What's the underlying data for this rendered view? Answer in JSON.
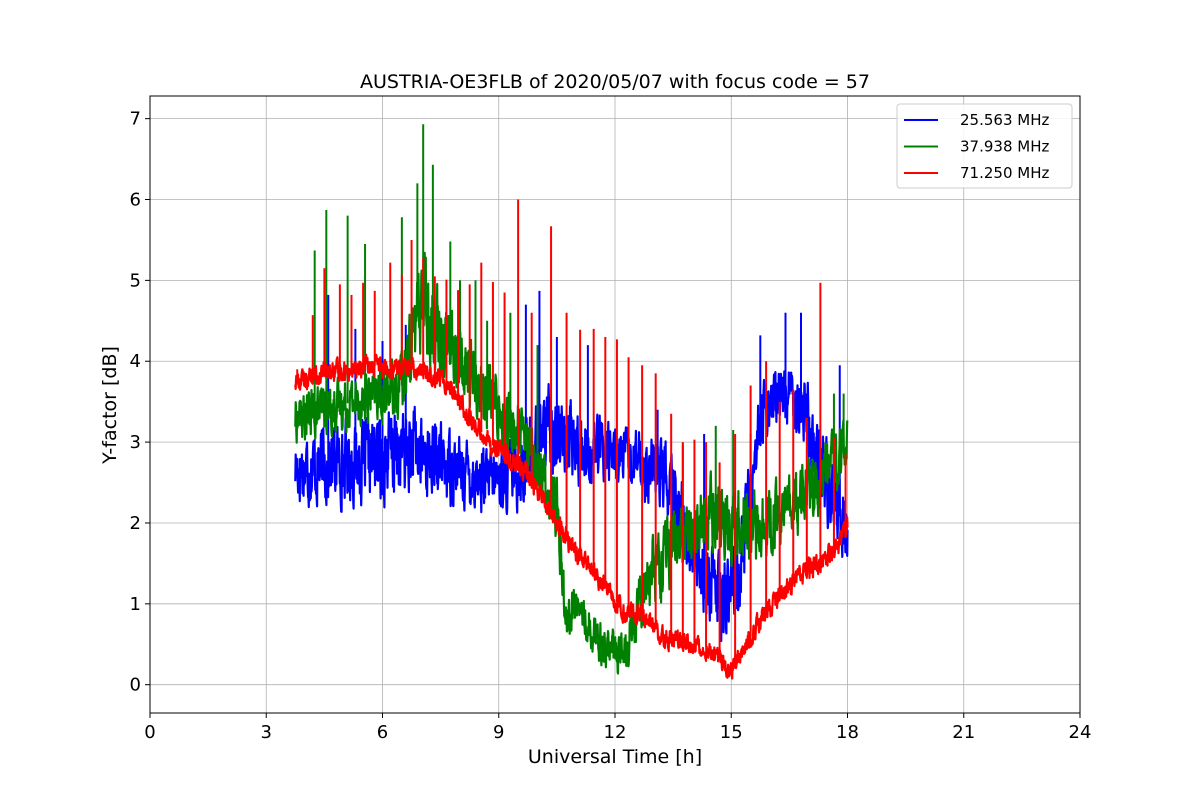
{
  "chart_data": {
    "type": "line",
    "title": "AUSTRIA-OE3FLB of 2020/05/07 with focus code = 57",
    "xlabel": "Universal Time [h]",
    "ylabel": "Y-factor [dB]",
    "xlim": [
      0,
      24
    ],
    "ylim": [
      -0.35,
      7.28
    ],
    "xticks": [
      0,
      3,
      6,
      9,
      12,
      15,
      18,
      21,
      24
    ],
    "yticks": [
      0,
      1,
      2,
      3,
      4,
      5,
      6,
      7
    ],
    "grid": true,
    "legend_position": "top-right",
    "series": [
      {
        "name": "25.563 MHz",
        "color": "#0000ff",
        "x": [
          3.75,
          4.25,
          4.75,
          5.25,
          5.75,
          6.25,
          6.75,
          7.25,
          7.75,
          8.25,
          8.75,
          9.25,
          9.75,
          10.25,
          10.75,
          11.25,
          11.75,
          12.25,
          12.75,
          13.25,
          13.75,
          14.25,
          14.75,
          15.25,
          15.75,
          16.25,
          16.75,
          17.25,
          17.75,
          18.0
        ],
        "base": [
          2.7,
          2.7,
          2.75,
          2.75,
          2.8,
          2.85,
          2.9,
          2.8,
          2.7,
          2.6,
          2.5,
          2.6,
          2.8,
          3.2,
          3.0,
          2.9,
          2.9,
          2.8,
          2.7,
          2.6,
          2.0,
          1.5,
          1.0,
          1.5,
          3.3,
          3.6,
          3.6,
          2.8,
          2.2,
          2.0
        ],
        "amp": [
          0.5,
          0.55,
          0.55,
          0.55,
          0.6,
          0.65,
          0.6,
          0.55,
          0.5,
          0.45,
          0.45,
          0.5,
          0.6,
          0.6,
          0.55,
          0.5,
          0.45,
          0.45,
          0.45,
          0.5,
          0.55,
          0.6,
          0.6,
          0.7,
          0.45,
          0.45,
          0.5,
          0.6,
          0.55,
          0.5
        ],
        "spikes": [
          [
            4.6,
            4.82
          ],
          [
            5.3,
            4.4
          ],
          [
            6.0,
            4.25
          ],
          [
            6.6,
            4.45
          ],
          [
            9.7,
            4.7
          ],
          [
            10.05,
            4.87
          ],
          [
            10.5,
            4.3
          ],
          [
            11.3,
            4.2
          ],
          [
            13.1,
            3.4
          ],
          [
            14.3,
            3.1
          ],
          [
            15.75,
            4.32
          ],
          [
            16.4,
            4.6
          ],
          [
            16.8,
            4.6
          ],
          [
            17.8,
            3.95
          ]
        ]
      },
      {
        "name": "37.938 MHz",
        "color": "#008000",
        "x": [
          3.75,
          4.5,
          5.25,
          6.0,
          6.5,
          7.0,
          7.5,
          8.0,
          8.5,
          9.0,
          9.5,
          10.0,
          10.5,
          10.75,
          11.0,
          11.5,
          12.0,
          12.25,
          12.75,
          13.25,
          13.75,
          14.25,
          14.75,
          15.25,
          15.75,
          16.25,
          16.75,
          17.25,
          17.75,
          18.0
        ],
        "base": [
          3.3,
          3.4,
          3.5,
          3.6,
          3.7,
          4.8,
          4.4,
          4.0,
          3.7,
          3.4,
          3.1,
          2.7,
          2.2,
          0.8,
          1.0,
          0.6,
          0.4,
          0.4,
          1.3,
          1.6,
          1.8,
          2.0,
          2.1,
          2.0,
          1.9,
          2.1,
          2.3,
          2.5,
          2.8,
          2.9
        ],
        "amp": [
          0.35,
          0.35,
          0.35,
          0.4,
          0.45,
          0.7,
          0.6,
          0.5,
          0.5,
          0.5,
          0.45,
          0.45,
          0.45,
          0.3,
          0.3,
          0.3,
          0.3,
          0.3,
          0.5,
          0.5,
          0.5,
          0.55,
          0.55,
          0.5,
          0.5,
          0.45,
          0.45,
          0.45,
          0.45,
          0.4
        ],
        "spikes": [
          [
            4.25,
            5.37
          ],
          [
            4.55,
            5.87
          ],
          [
            5.1,
            5.8
          ],
          [
            5.55,
            5.45
          ],
          [
            6.5,
            5.78
          ],
          [
            6.9,
            6.2
          ],
          [
            7.05,
            6.93
          ],
          [
            7.3,
            6.43
          ],
          [
            7.75,
            5.48
          ],
          [
            8.0,
            5.0
          ],
          [
            8.4,
            5.0
          ],
          [
            8.7,
            4.5
          ],
          [
            9.3,
            4.6
          ],
          [
            10.0,
            4.2
          ],
          [
            13.75,
            2.97
          ],
          [
            14.6,
            3.2
          ],
          [
            15.05,
            3.15
          ],
          [
            15.5,
            3.1
          ],
          [
            17.65,
            3.6
          ],
          [
            17.9,
            3.6
          ]
        ]
      },
      {
        "name": "71.250 MHz",
        "color": "#ff0000",
        "x": [
          3.75,
          4.5,
          5.25,
          6.0,
          6.75,
          7.25,
          7.75,
          8.25,
          8.75,
          9.25,
          9.75,
          10.25,
          10.75,
          11.25,
          11.75,
          12.25,
          12.75,
          13.25,
          13.75,
          14.25,
          14.75,
          15.0,
          15.25,
          15.75,
          16.25,
          16.75,
          17.25,
          17.75,
          18.0
        ],
        "base": [
          3.75,
          3.85,
          3.9,
          3.95,
          3.9,
          3.85,
          3.7,
          3.3,
          3.0,
          2.8,
          2.6,
          2.2,
          1.8,
          1.5,
          1.2,
          0.9,
          0.85,
          0.6,
          0.5,
          0.5,
          0.3,
          0.2,
          0.4,
          0.8,
          1.1,
          1.35,
          1.5,
          1.7,
          2.0
        ],
        "amp": [
          0.15,
          0.15,
          0.15,
          0.15,
          0.15,
          0.15,
          0.15,
          0.15,
          0.15,
          0.15,
          0.15,
          0.15,
          0.15,
          0.15,
          0.15,
          0.15,
          0.15,
          0.15,
          0.15,
          0.15,
          0.15,
          0.15,
          0.15,
          0.15,
          0.15,
          0.15,
          0.15,
          0.15,
          0.15
        ],
        "spikes": [
          [
            3.8,
            3.9
          ],
          [
            4.2,
            4.57
          ],
          [
            4.5,
            5.15
          ],
          [
            4.9,
            4.95
          ],
          [
            5.2,
            4.82
          ],
          [
            5.5,
            4.97
          ],
          [
            5.8,
            4.87
          ],
          [
            6.2,
            5.22
          ],
          [
            6.5,
            5.07
          ],
          [
            6.75,
            5.5
          ],
          [
            7.05,
            5.28
          ],
          [
            7.35,
            5.05
          ],
          [
            7.65,
            5.01
          ],
          [
            7.95,
            4.88
          ],
          [
            8.25,
            4.95
          ],
          [
            8.55,
            5.22
          ],
          [
            8.85,
            4.98
          ],
          [
            9.15,
            4.85
          ],
          [
            9.5,
            6.0
          ],
          [
            9.85,
            4.6
          ],
          [
            10.35,
            5.67
          ],
          [
            10.75,
            4.6
          ],
          [
            11.1,
            4.39
          ],
          [
            11.45,
            4.4
          ],
          [
            11.75,
            4.3
          ],
          [
            12.05,
            4.27
          ],
          [
            12.35,
            4.05
          ],
          [
            12.7,
            3.95
          ],
          [
            13.05,
            3.85
          ],
          [
            13.45,
            3.35
          ],
          [
            13.75,
            3.0
          ],
          [
            14.05,
            3.03
          ],
          [
            14.35,
            3.0
          ],
          [
            14.7,
            2.75
          ],
          [
            15.1,
            3.1
          ],
          [
            15.5,
            3.7
          ],
          [
            15.9,
            4.0
          ],
          [
            16.25,
            3.5
          ],
          [
            16.6,
            3.65
          ],
          [
            16.95,
            3.3
          ],
          [
            17.3,
            4.97
          ],
          [
            17.65,
            3.05
          ],
          [
            17.95,
            2.85
          ]
        ]
      }
    ]
  }
}
